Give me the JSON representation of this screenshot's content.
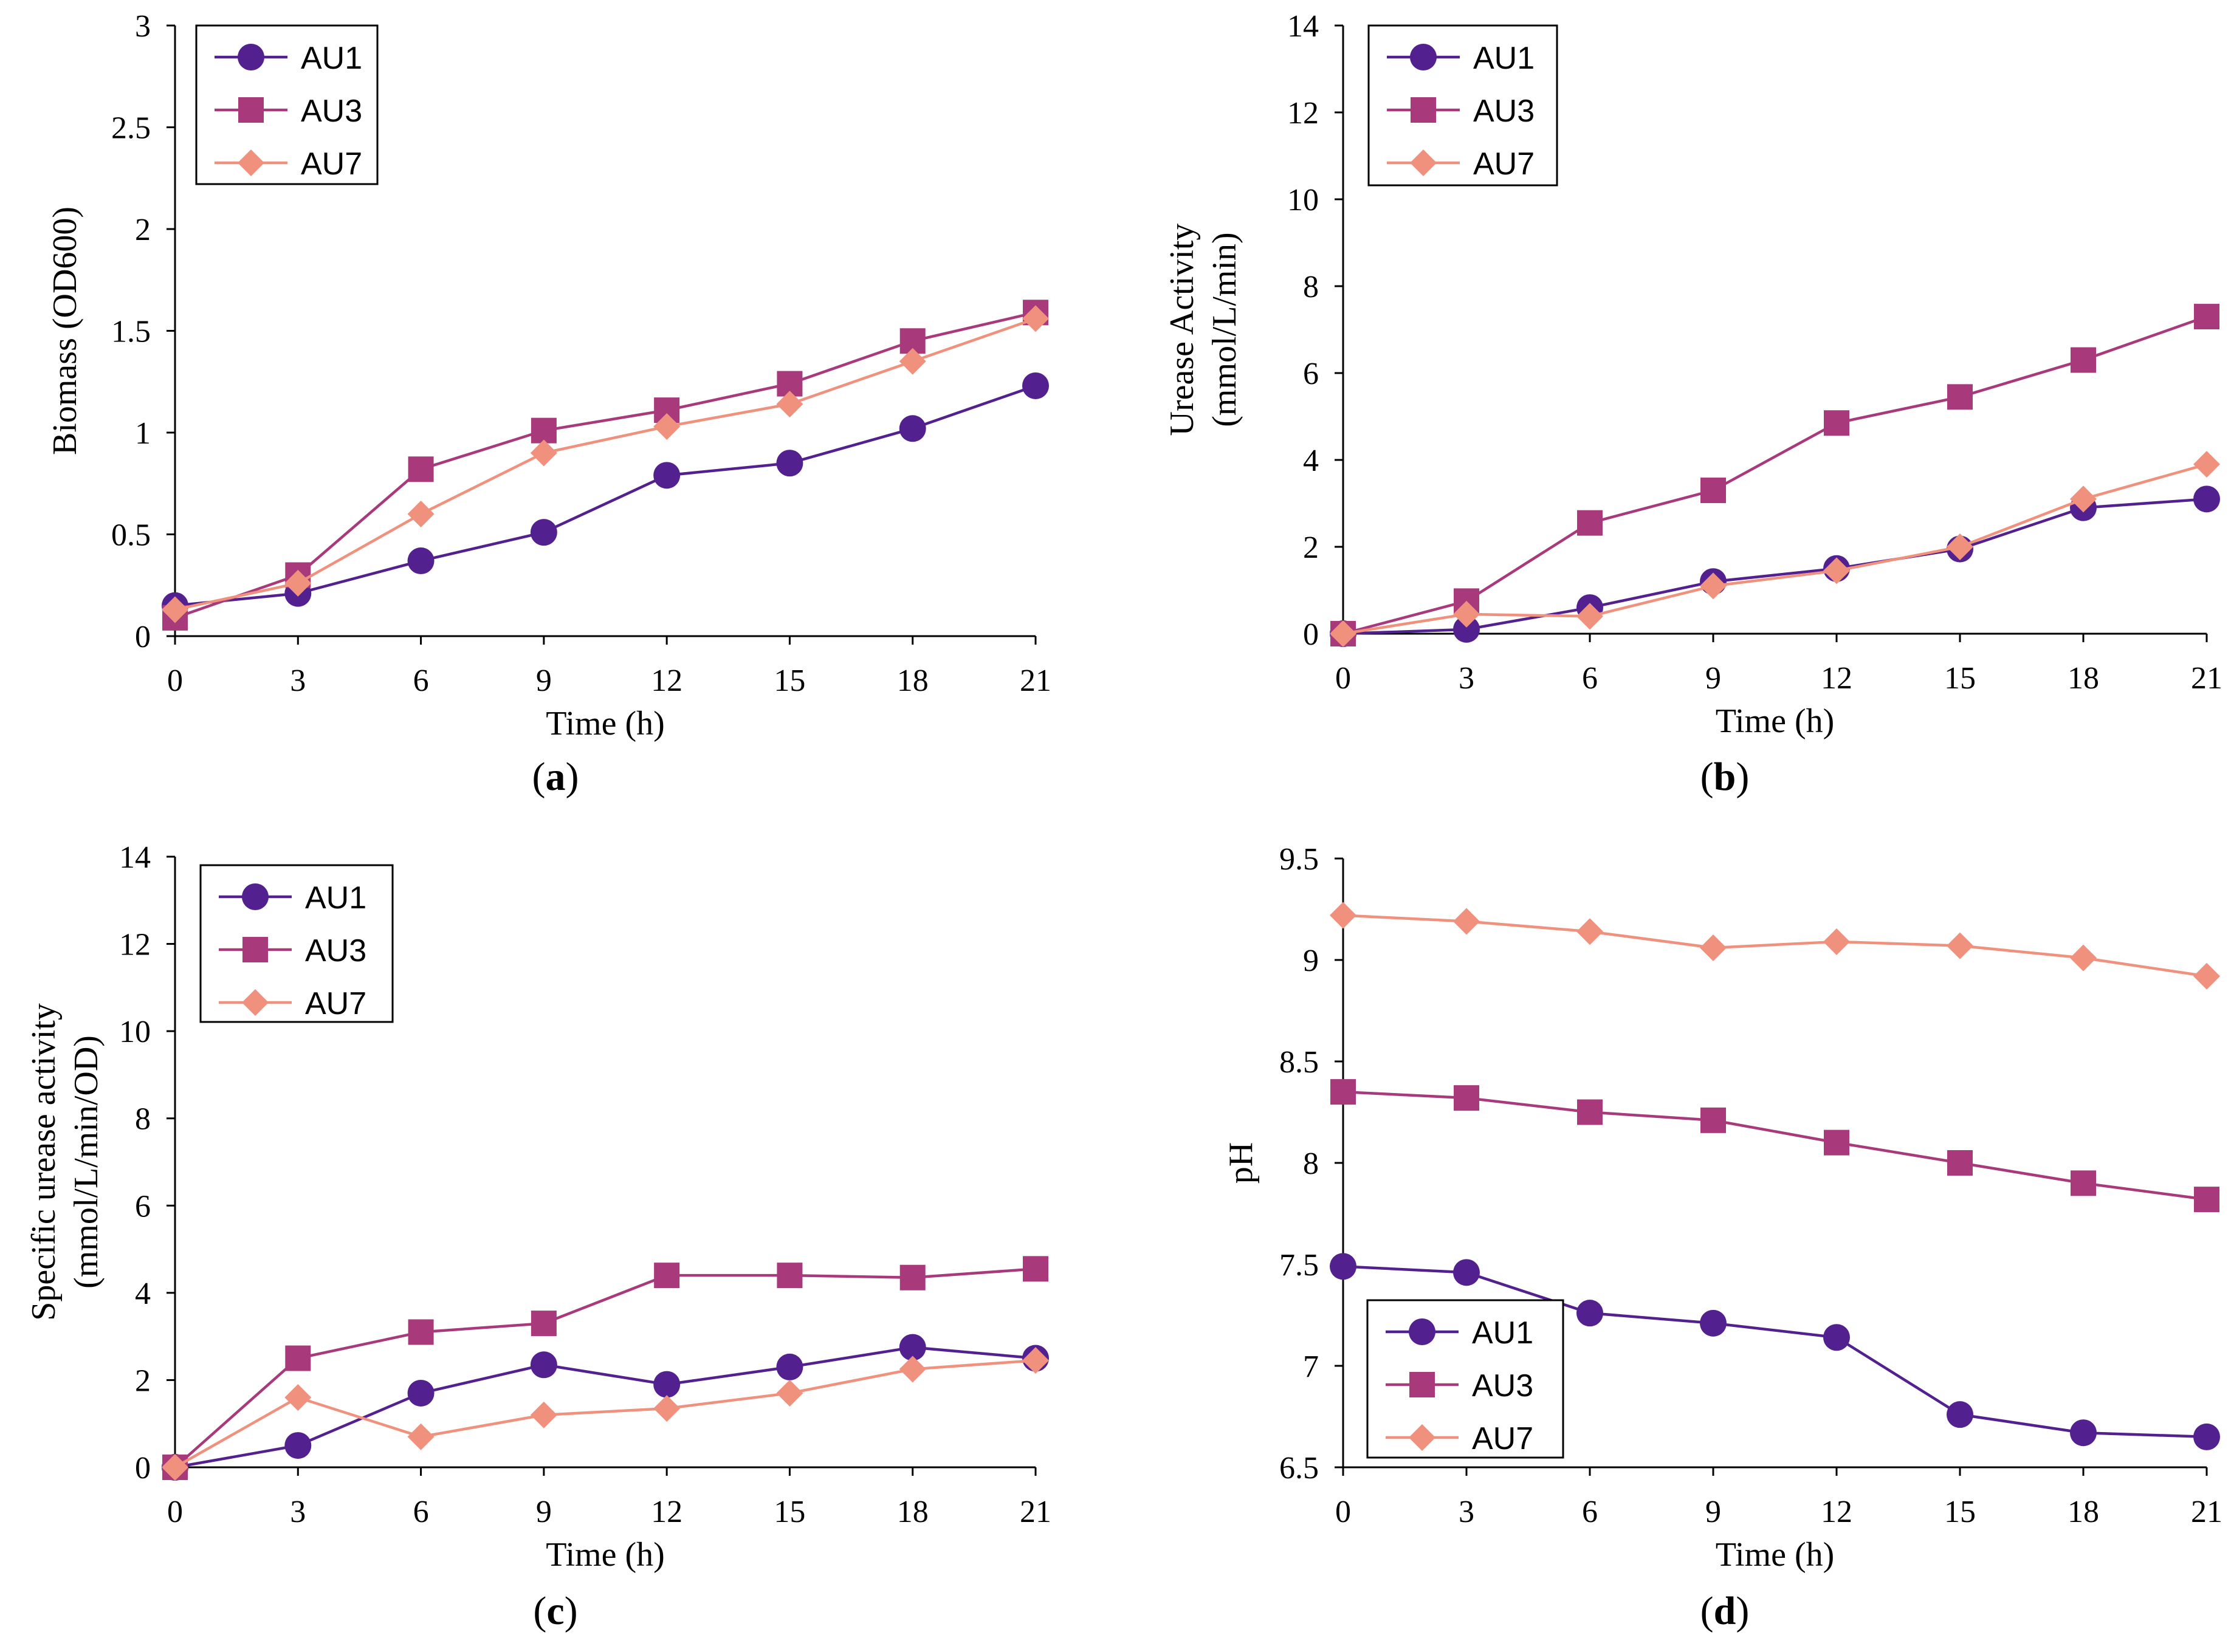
{
  "colors": {
    "AU1": "#52208f",
    "AU3": "#a83a7c",
    "AU7": "#f0917e"
  },
  "chart_data": [
    {
      "id": "a",
      "type": "line",
      "panel_label": "a",
      "xlabel": "Time (h)",
      "ylabel": [
        "Biomass (OD600)"
      ],
      "x": [
        0,
        3,
        6,
        9,
        12,
        15,
        18,
        21
      ],
      "xticks": [
        "0",
        "3",
        "6",
        "9",
        "12",
        "15",
        "18",
        "21"
      ],
      "ylim": [
        0,
        3
      ],
      "yticks": [
        "0",
        "0.5",
        "1",
        "1.5",
        "2",
        "2.5",
        "3"
      ],
      "legend": "top-left",
      "series": [
        {
          "name": "AU1",
          "marker": "circle",
          "values": [
            0.15,
            0.21,
            0.37,
            0.51,
            0.79,
            0.85,
            1.02,
            1.23
          ]
        },
        {
          "name": "AU3",
          "marker": "square",
          "values": [
            0.09,
            0.3,
            0.82,
            1.01,
            1.11,
            1.24,
            1.45,
            1.59
          ]
        },
        {
          "name": "AU7",
          "marker": "diamond",
          "values": [
            0.13,
            0.26,
            0.6,
            0.9,
            1.03,
            1.14,
            1.35,
            1.56
          ]
        }
      ]
    },
    {
      "id": "b",
      "type": "line",
      "panel_label": "b",
      "xlabel": "Time (h)",
      "ylabel": [
        "Urease Activity",
        "(mmol/L/min)"
      ],
      "x": [
        0,
        3,
        6,
        9,
        12,
        15,
        18,
        21
      ],
      "xticks": [
        "0",
        "3",
        "6",
        "9",
        "12",
        "15",
        "18",
        "21"
      ],
      "ylim": [
        0,
        14
      ],
      "yticks": [
        "0",
        "2",
        "4",
        "6",
        "8",
        "10",
        "12",
        "14"
      ],
      "legend": "top-left",
      "series": [
        {
          "name": "AU1",
          "marker": "circle",
          "values": [
            0.0,
            0.1,
            0.6,
            1.2,
            1.5,
            1.95,
            2.9,
            3.1
          ]
        },
        {
          "name": "AU3",
          "marker": "square",
          "values": [
            0.0,
            0.75,
            2.55,
            3.3,
            4.85,
            5.45,
            6.3,
            7.3
          ]
        },
        {
          "name": "AU7",
          "marker": "diamond",
          "values": [
            0.0,
            0.45,
            0.4,
            1.1,
            1.45,
            2.0,
            3.1,
            3.9
          ]
        }
      ]
    },
    {
      "id": "c",
      "type": "line",
      "panel_label": "c",
      "xlabel": "Time (h)",
      "ylabel": [
        "Specific urease activity",
        "(mmol/L/min/OD)"
      ],
      "x": [
        0,
        3,
        6,
        9,
        12,
        15,
        18,
        21
      ],
      "xticks": [
        "0",
        "3",
        "6",
        "9",
        "12",
        "15",
        "18",
        "21"
      ],
      "ylim": [
        0,
        14
      ],
      "yticks": [
        "0",
        "2",
        "4",
        "6",
        "8",
        "10",
        "12",
        "14"
      ],
      "legend": "top-left",
      "series": [
        {
          "name": "AU1",
          "marker": "circle",
          "values": [
            0.0,
            0.5,
            1.7,
            2.35,
            1.9,
            2.3,
            2.75,
            2.5
          ]
        },
        {
          "name": "AU3",
          "marker": "square",
          "values": [
            0.0,
            2.5,
            3.1,
            3.3,
            4.4,
            4.4,
            4.35,
            4.55
          ]
        },
        {
          "name": "AU7",
          "marker": "diamond",
          "values": [
            0.0,
            1.6,
            0.7,
            1.2,
            1.35,
            1.7,
            2.25,
            2.45
          ]
        }
      ]
    },
    {
      "id": "d",
      "type": "line",
      "panel_label": "d",
      "xlabel": "Time (h)",
      "ylabel": [
        "pH"
      ],
      "x": [
        0,
        3,
        6,
        9,
        12,
        15,
        18,
        21
      ],
      "xticks": [
        "0",
        "3",
        "6",
        "9",
        "12",
        "15",
        "18",
        "21"
      ],
      "ylim": [
        6.5,
        9.5
      ],
      "yticks": [
        "6.5",
        "7",
        "7.5",
        "8",
        "8.5",
        "9",
        "9.5"
      ],
      "legend": "bottom-left",
      "series": [
        {
          "name": "AU1",
          "marker": "circle",
          "values": [
            7.49,
            7.46,
            7.26,
            7.21,
            7.14,
            6.76,
            6.67,
            6.65
          ]
        },
        {
          "name": "AU3",
          "marker": "square",
          "values": [
            8.35,
            8.32,
            8.25,
            8.21,
            8.1,
            8.0,
            7.9,
            7.82
          ]
        },
        {
          "name": "AU7",
          "marker": "diamond",
          "values": [
            9.22,
            9.19,
            9.14,
            9.06,
            9.09,
            9.07,
            9.01,
            8.92
          ]
        }
      ]
    }
  ]
}
